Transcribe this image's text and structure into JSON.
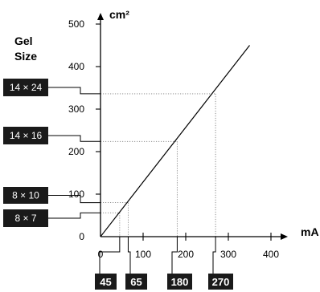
{
  "chart_data": {
    "type": "line",
    "title": "",
    "xlabel": "mA",
    "ylabel": "cm²",
    "xlim": [
      0,
      440
    ],
    "ylim": [
      0,
      540
    ],
    "x_ticks": [
      0,
      100,
      200,
      300,
      400
    ],
    "y_ticks": [
      0,
      100,
      200,
      300,
      400,
      500
    ],
    "grid": false,
    "legend": "none",
    "series": [
      {
        "x": [
          0,
          350
        ],
        "y": [
          0,
          450
        ]
      }
    ],
    "gel_size_title": [
      "Gel",
      "Size"
    ],
    "gel_sizes": [
      {
        "label": "14 × 24",
        "area": 336,
        "current_label": "270",
        "current": 270
      },
      {
        "label": "14 × 16",
        "area": 224,
        "current_label": "180",
        "current": 180
      },
      {
        "label": "8 × 10",
        "area": 80,
        "current_label": "65",
        "current": 65
      },
      {
        "label": "8 × 7",
        "area": 56,
        "current_label": "45",
        "current": 45
      }
    ]
  }
}
